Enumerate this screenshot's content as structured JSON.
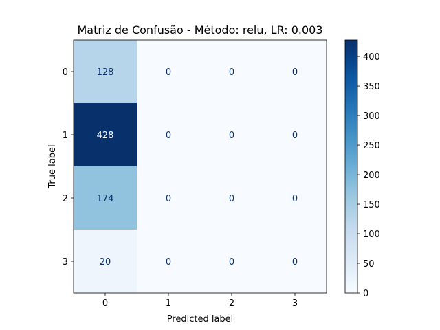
{
  "chart_data": {
    "type": "heatmap",
    "title": "Matriz de Confusão - Método: relu, LR: 0.003",
    "xlabel": "Predicted label",
    "ylabel": "True label",
    "x_categories": [
      "0",
      "1",
      "2",
      "3"
    ],
    "y_categories": [
      "0",
      "1",
      "2",
      "3"
    ],
    "matrix": [
      [
        128,
        0,
        0,
        0
      ],
      [
        428,
        0,
        0,
        0
      ],
      [
        174,
        0,
        0,
        0
      ],
      [
        20,
        0,
        0,
        0
      ]
    ],
    "colormap": "Blues",
    "colorbar": {
      "min": 0,
      "max": 428,
      "ticks": [
        0,
        50,
        100,
        150,
        200,
        250,
        300,
        350,
        400
      ]
    },
    "grid": false
  }
}
